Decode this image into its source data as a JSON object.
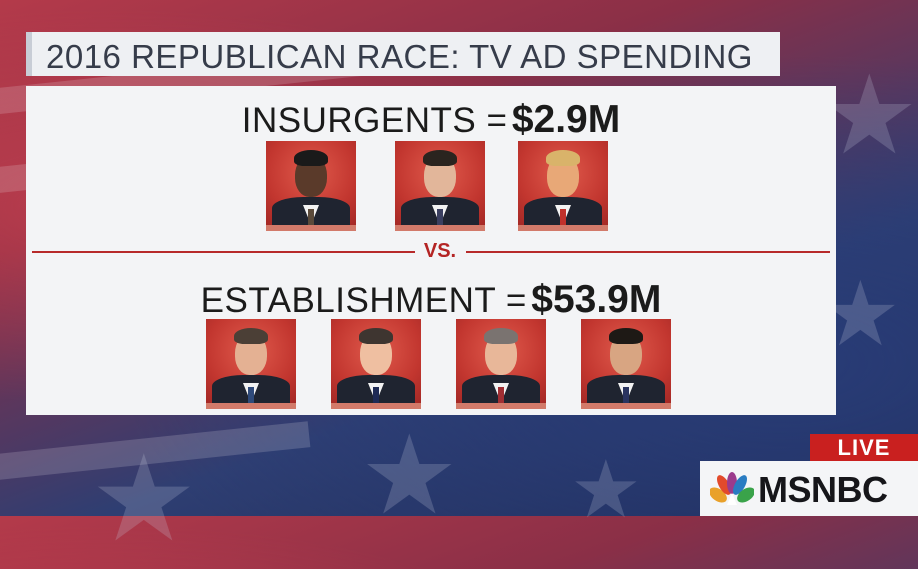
{
  "title": "2016 REPUBLICAN RACE: TV AD SPENDING",
  "insurgents": {
    "label": "INSURGENTS =",
    "amount": "$2.9M",
    "portraits": [
      {
        "name": "ben-carson",
        "skin": "#5a3a2a",
        "hair": "#1a1a1a",
        "tie": "#5a4a3a"
      },
      {
        "name": "ted-cruz",
        "skin": "#e2b69a",
        "hair": "#2a241f",
        "tie": "#3a3f60"
      },
      {
        "name": "donald-trump",
        "skin": "#e8a877",
        "hair": "#d9b36a",
        "tie": "#c0312b"
      }
    ]
  },
  "vs_label": "VS.",
  "establishment": {
    "label": "ESTABLISHMENT =",
    "amount": "$53.9M",
    "portraits": [
      {
        "name": "jeb-bush",
        "skin": "#e4b193",
        "hair": "#4b3f36",
        "tie": "#2f4a7a"
      },
      {
        "name": "chris-christie",
        "skin": "#efbfa1",
        "hair": "#3e3530",
        "tie": "#1e2a55"
      },
      {
        "name": "john-kasich",
        "skin": "#e8b799",
        "hair": "#7a7370",
        "tie": "#a02e33"
      },
      {
        "name": "marco-rubio",
        "skin": "#d8a582",
        "hair": "#1e1915",
        "tie": "#2a3460"
      }
    ]
  },
  "badge": {
    "live": "LIVE",
    "network": "MSNBC"
  }
}
